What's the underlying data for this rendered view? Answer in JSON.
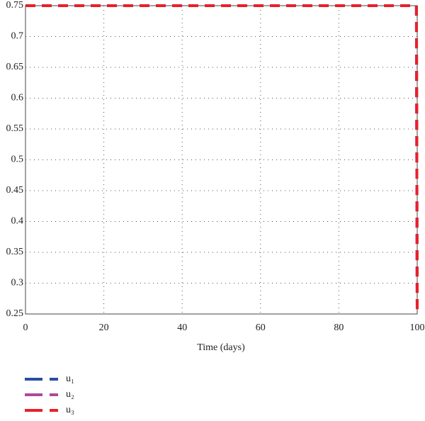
{
  "chart_data": {
    "type": "line",
    "x_label": "Time (days)",
    "x": [
      0,
      99.8,
      100
    ],
    "series": [
      {
        "name": "u₁",
        "color": "#2b4ea0",
        "values": [
          0.75,
          0.75,
          0.25
        ]
      },
      {
        "name": "u₂",
        "color": "#b0489a",
        "values": [
          0.75,
          0.75,
          0.25
        ]
      },
      {
        "name": "u₃",
        "color": "#e8202a",
        "values": [
          0.75,
          0.75,
          0.25
        ]
      }
    ],
    "xlim": [
      0,
      100
    ],
    "xticks": [
      0,
      20,
      40,
      60,
      80,
      100
    ],
    "ylim": [
      0.25,
      0.75
    ],
    "yticks": [
      0.25,
      0.3,
      0.35,
      0.4,
      0.45,
      0.5,
      0.55,
      0.6,
      0.65,
      0.7,
      0.75
    ],
    "grid": true
  }
}
